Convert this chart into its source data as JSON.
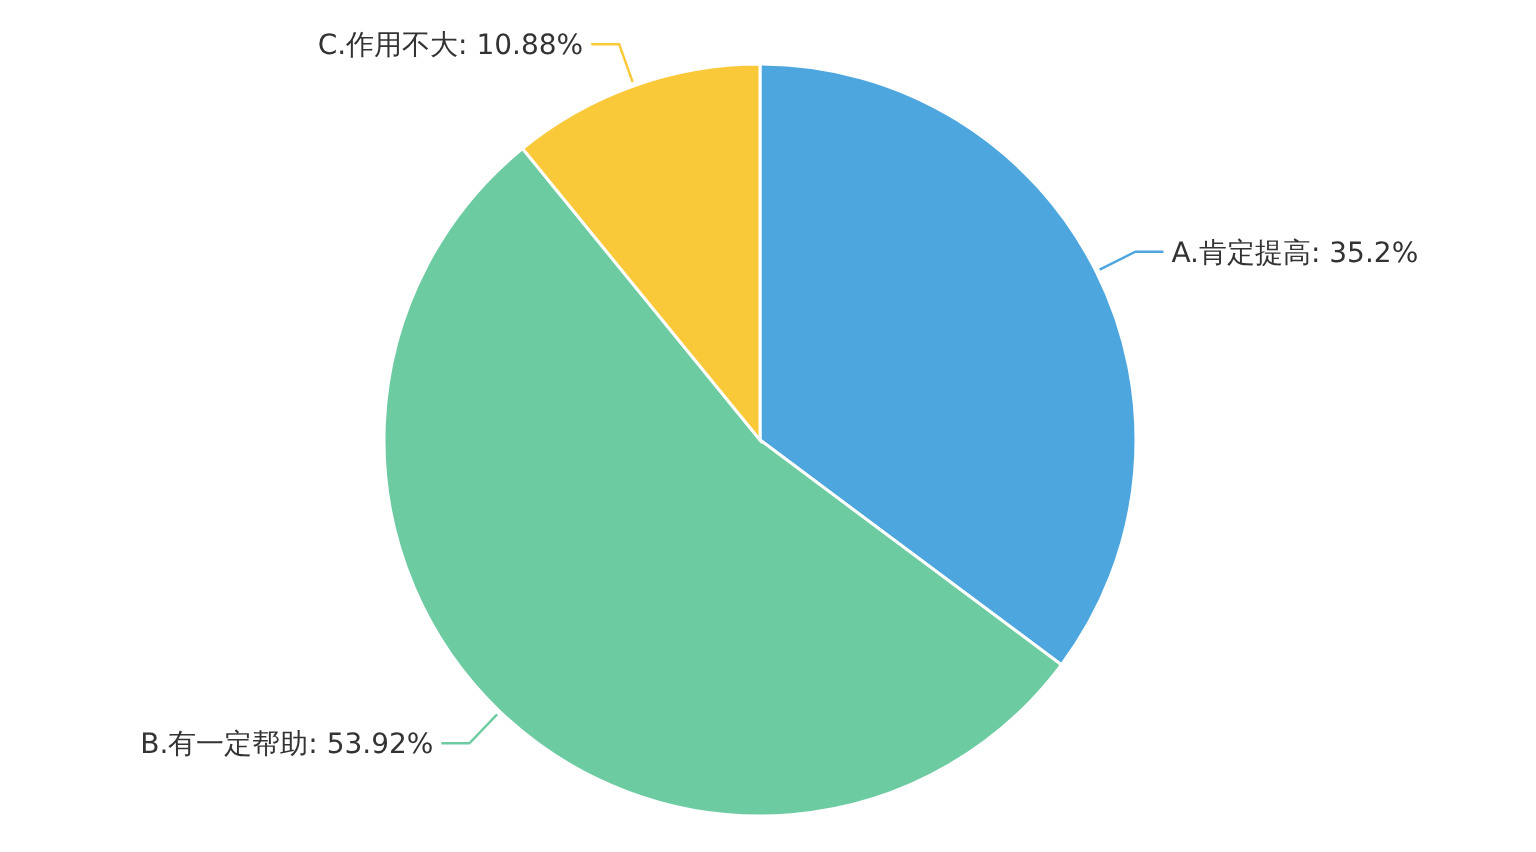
{
  "chart_data": {
    "type": "pie",
    "categories": [
      "A.肯定提高",
      "B.有一定帮助",
      "C.作用不大"
    ],
    "values": [
      35.2,
      53.92,
      10.88
    ],
    "colors": [
      "#4ea6df",
      "#6ccba0",
      "#fac939"
    ],
    "value_labels": [
      "35.2%",
      "53.92%",
      "10.88%"
    ]
  }
}
